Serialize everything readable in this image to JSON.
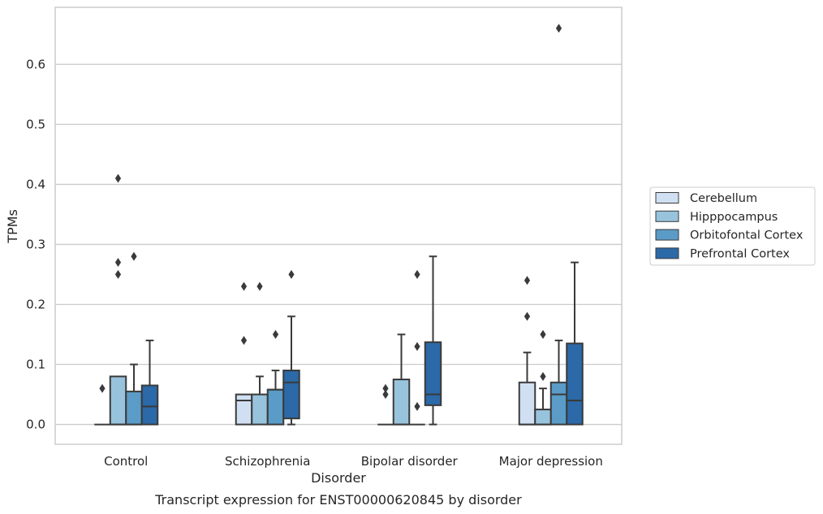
{
  "chart_data": {
    "type": "boxplot",
    "xlabel": "Disorder",
    "ylabel": "TPMs",
    "caption": "Transcript expression for ENST00000620845 by disorder",
    "ylim": [
      -0.033,
      0.695
    ],
    "yticks": [
      "0.0",
      "0.1",
      "0.2",
      "0.3",
      "0.4",
      "0.5",
      "0.6"
    ],
    "grid": "horizontal",
    "legend_position": "right",
    "categories": [
      "Control",
      "Schizophrenia",
      "Bipolar disorder",
      "Major depression"
    ],
    "series": [
      {
        "name": "Cerebellum",
        "color": "#d0e0f2",
        "boxes": [
          {
            "q1": 0,
            "median": 0,
            "q3": 0,
            "whisker_low": 0,
            "whisker_high": 0,
            "outliers": [
              0.06
            ]
          },
          {
            "q1": 0,
            "median": 0.04,
            "q3": 0.05,
            "whisker_low": 0,
            "whisker_high": 0.05,
            "outliers": [
              0.14,
              0.23
            ]
          },
          {
            "q1": 0,
            "median": 0,
            "q3": 0,
            "whisker_low": 0,
            "whisker_high": 0,
            "outliers": [
              0.05,
              0.06
            ]
          },
          {
            "q1": 0,
            "median": 0,
            "q3": 0.07,
            "whisker_low": 0,
            "whisker_high": 0.12,
            "outliers": [
              0.18,
              0.24
            ]
          }
        ]
      },
      {
        "name": "Hipppocampus",
        "color": "#98c3dd",
        "boxes": [
          {
            "q1": 0,
            "median": 0,
            "q3": 0.08,
            "whisker_low": 0,
            "whisker_high": 0.08,
            "outliers": [
              0.25,
              0.27,
              0.41
            ]
          },
          {
            "q1": 0,
            "median": 0.05,
            "q3": 0.05,
            "whisker_low": 0,
            "whisker_high": 0.08,
            "outliers": [
              0.23
            ]
          },
          {
            "q1": 0,
            "median": 0,
            "q3": 0.075,
            "whisker_low": 0,
            "whisker_high": 0.15,
            "outliers": []
          },
          {
            "q1": 0,
            "median": 0,
            "q3": 0.025,
            "whisker_low": 0,
            "whisker_high": 0.06,
            "outliers": [
              0.08,
              0.15
            ]
          }
        ]
      },
      {
        "name": "Orbitofontal Cortex",
        "color": "#5b9bc7",
        "boxes": [
          {
            "q1": 0,
            "median": 0,
            "q3": 0.055,
            "whisker_low": 0,
            "whisker_high": 0.1,
            "outliers": [
              0.28
            ]
          },
          {
            "q1": 0,
            "median": 0.058,
            "q3": 0.058,
            "whisker_low": 0,
            "whisker_high": 0.09,
            "outliers": [
              0.15
            ]
          },
          {
            "q1": 0,
            "median": 0,
            "q3": 0,
            "whisker_low": 0,
            "whisker_high": 0,
            "outliers": [
              0.03,
              0.13,
              0.25
            ]
          },
          {
            "q1": 0,
            "median": 0.05,
            "q3": 0.07,
            "whisker_low": 0,
            "whisker_high": 0.14,
            "outliers": [
              0.66
            ]
          }
        ]
      },
      {
        "name": "Prefrontal Cortex",
        "color": "#2b69a8",
        "boxes": [
          {
            "q1": 0,
            "median": 0.03,
            "q3": 0.065,
            "whisker_low": 0,
            "whisker_high": 0.14,
            "outliers": []
          },
          {
            "q1": 0.01,
            "median": 0.07,
            "q3": 0.09,
            "whisker_low": 0,
            "whisker_high": 0.18,
            "outliers": [
              0.25
            ]
          },
          {
            "q1": 0.032,
            "median": 0.05,
            "q3": 0.137,
            "whisker_low": 0,
            "whisker_high": 0.28,
            "outliers": []
          },
          {
            "q1": 0,
            "median": 0.04,
            "q3": 0.135,
            "whisker_low": 0,
            "whisker_high": 0.27,
            "outliers": []
          }
        ]
      }
    ]
  }
}
